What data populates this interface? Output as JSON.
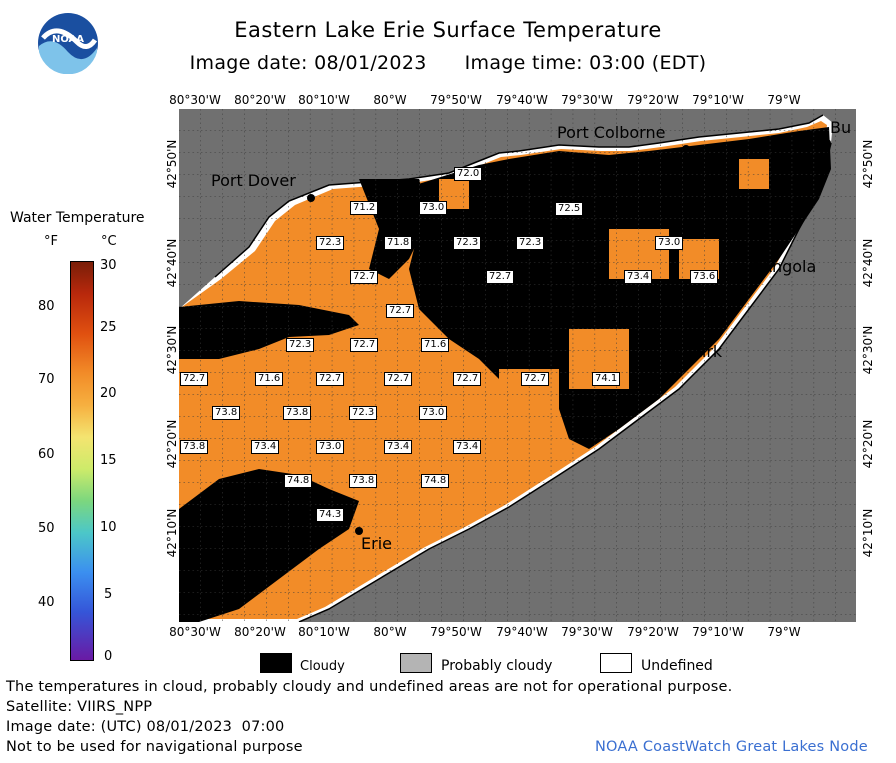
{
  "header": {
    "title": "Eastern Lake Erie Surface Temperature",
    "image_date": "Image date: 08/01/2023",
    "image_time": "Image time: 03:00 (EDT)",
    "logo_text": "NOAA"
  },
  "map": {
    "top_lon_labels": [
      "80°30'W",
      "80°20'W",
      "80°10'W",
      "80°W",
      "79°50'W",
      "79°40'W",
      "79°30'W",
      "79°20'W",
      "79°10'W",
      "79°W"
    ],
    "bottom_lon_labels": [
      "80°30'W",
      "80°20'W",
      "80°10'W",
      "80°W",
      "79°50'W",
      "79°40'W",
      "79°30'W",
      "79°20'W",
      "79°10'W",
      "79°W"
    ],
    "left_lat_labels": [
      "42°50'N",
      "42°40'N",
      "42°30'N",
      "42°20'N",
      "42°10'N"
    ],
    "right_lat_labels": [
      "42°50'N",
      "42°40'N",
      "42°30'N",
      "42°20'N",
      "42°10'N"
    ],
    "places": {
      "port_colborne": "Port Colborne",
      "port_dover": "Port Dover",
      "angola": "Angola",
      "dunkirk": "Dunkirk",
      "erie": "Erie",
      "buffalo": "Bu"
    },
    "temps": [
      "72.0",
      "71.2",
      "73.0",
      "72.3",
      "71.8",
      "72.3",
      "72.3",
      "72.7",
      "73.0",
      "73.4",
      "73.6",
      "72.7",
      "72.7",
      "71.6",
      "72.3",
      "72.7",
      "72.7",
      "71.6",
      "72.7",
      "72.7",
      "72.7",
      "72.7",
      "73.8",
      "73.8",
      "72.3",
      "73.0",
      "73.8",
      "73.4",
      "73.0",
      "73.4",
      "73.4",
      "74.8",
      "73.8",
      "74.8",
      "74.3",
      "74.1",
      "72.5"
    ],
    "colors": {
      "ocean_gray": "#707070",
      "land_gray": "#707070",
      "cloud": "#000000",
      "water_warm": "#f28c28",
      "water_pale": "#f6a24a",
      "probably_cloudy": "#b0b0b0",
      "grid": "#3a3a3a"
    }
  },
  "legend": {
    "title": "Water Temperature",
    "unit_f": "°F",
    "unit_c": "°C",
    "f_ticks": [
      "80",
      "70",
      "60",
      "50",
      "40"
    ],
    "c_ticks": [
      "30",
      "25",
      "20",
      "15",
      "10",
      "5",
      "0"
    ],
    "items": [
      {
        "label": "Cloudy",
        "color": "#000000"
      },
      {
        "label": "Probably cloudy",
        "color": "#b4b4b4"
      },
      {
        "label": "Undefined",
        "color": "#ffffff"
      }
    ]
  },
  "footer": {
    "note": "The temperatures in cloud, probably cloudy and undefined areas are not for operational purpose.",
    "satellite": "Satellite: VIIRS_NPP",
    "utc_date": "Image date: (UTC) 08/01/2023  07:00",
    "nav": "Not to be used for navigational purpose",
    "credit": "NOAA CoastWatch Great Lakes Node"
  }
}
